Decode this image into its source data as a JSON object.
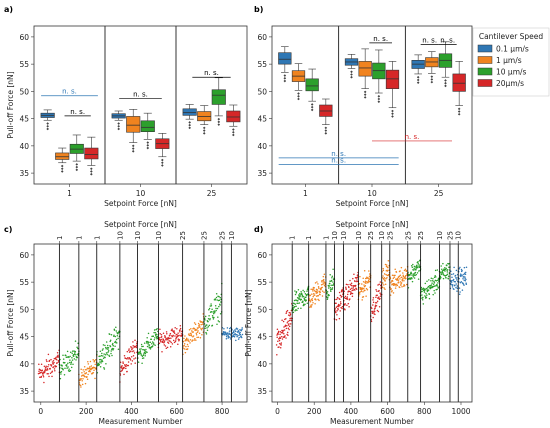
{
  "colors": {
    "s01": "#2f77b4",
    "s1": "#f0831f",
    "s10": "#2ca02c",
    "s20": "#d62728",
    "ns_blue": "#2f77b4",
    "ns_red": "#d62728",
    "divider": "#000000"
  },
  "legend": {
    "title": "Cantilever Speed",
    "items": [
      "0.1 µm/s",
      "1 µm/s",
      "10 µm/s",
      "20µm/s"
    ]
  },
  "chart_data": [
    {
      "panel": "a)",
      "type": "box",
      "xlabel": "Setpoint Force [nN]",
      "ylabel": "Pull-off Force [nN]",
      "ylim": [
        33,
        62
      ],
      "yticks": [
        35,
        40,
        45,
        50,
        55,
        60
      ],
      "categories": [
        "1",
        "10",
        "25"
      ],
      "series": [
        {
          "color": "s01",
          "boxes": [
            [
              44.7,
              45.2,
              45.6,
              46.0,
              46.6
            ],
            [
              44.7,
              45.1,
              45.5,
              45.9,
              46.4
            ],
            [
              44.9,
              45.6,
              46.1,
              46.8,
              47.6
            ]
          ]
        },
        {
          "color": "s1",
          "boxes": [
            [
              36.9,
              37.5,
              38.0,
              38.7,
              39.6
            ],
            [
              40.6,
              42.5,
              43.8,
              45.4,
              46.7
            ],
            [
              43.9,
              44.6,
              45.4,
              46.3,
              47.4
            ]
          ]
        },
        {
          "color": "s10",
          "boxes": [
            [
              37.2,
              38.6,
              39.4,
              40.3,
              42.0
            ],
            [
              41.2,
              42.6,
              43.4,
              44.6,
              46.0
            ],
            [
              45.5,
              47.6,
              49.3,
              50.3,
              52.5
            ]
          ]
        },
        {
          "color": "s20",
          "boxes": [
            [
              36.4,
              37.6,
              38.4,
              39.6,
              41.6
            ],
            [
              38.0,
              39.5,
              40.4,
              41.3,
              42.3
            ],
            [
              43.6,
              44.4,
              45.3,
              46.4,
              47.5
            ]
          ]
        }
      ],
      "annotations": [
        {
          "text": "n. s.",
          "y": 49.2,
          "x0": 0.6,
          "x1": 1.4,
          "color": "ns_blue"
        },
        {
          "text": "n. s.",
          "y": 45.5,
          "x0": 0.93,
          "x1": 1.3,
          "color": "divider"
        },
        {
          "text": "n. s.",
          "y": 48.7,
          "x0": 1.7,
          "x1": 2.3,
          "color": "divider"
        },
        {
          "text": "n. s.",
          "y": 52.6,
          "x0": 2.73,
          "x1": 3.27,
          "color": "divider"
        }
      ]
    },
    {
      "panel": "b)",
      "type": "box",
      "xlabel": "Setpoint Force [nN]",
      "ylabel": "",
      "ylim": [
        33,
        62
      ],
      "yticks": [
        35,
        40,
        45,
        50,
        55,
        60
      ],
      "categories": [
        "1",
        "10",
        "25"
      ],
      "series": [
        {
          "color": "s01",
          "boxes": [
            [
              53.5,
              55.0,
              55.9,
              57.1,
              58.2
            ],
            [
              54.2,
              54.8,
              55.4,
              56.0,
              56.8
            ],
            [
              53.2,
              54.2,
              55.0,
              55.7,
              56.7
            ]
          ]
        },
        {
          "color": "s1",
          "boxes": [
            [
              50.2,
              51.8,
              52.8,
              53.8,
              55.1
            ],
            [
              50.5,
              52.8,
              54.3,
              55.5,
              57.8
            ],
            [
              53.3,
              54.5,
              55.4,
              56.2,
              57.3
            ]
          ]
        },
        {
          "color": "s10",
          "boxes": [
            [
              48.2,
              50.1,
              51.0,
              52.3,
              54.1
            ],
            [
              49.7,
              52.3,
              53.8,
              55.2,
              57.6
            ],
            [
              52.6,
              54.4,
              55.7,
              56.9,
              59.1
            ]
          ]
        },
        {
          "color": "s20",
          "boxes": [
            [
              43.9,
              45.4,
              46.4,
              47.5,
              48.6
            ],
            [
              47.0,
              50.5,
              52.3,
              53.9,
              55.5
            ],
            [
              47.4,
              50.0,
              51.5,
              53.2,
              55.5
            ]
          ]
        }
      ],
      "annotations": [
        {
          "text": "n. s.",
          "y": 37.8,
          "x0": 0.6,
          "x1": 2.4,
          "color": "ns_blue"
        },
        {
          "text": "n. s.",
          "y": 36.6,
          "x0": 0.6,
          "x1": 2.4,
          "color": "ns_blue"
        },
        {
          "text": "n. s.",
          "y": 40.9,
          "x0": 2.0,
          "x1": 3.2,
          "color": "ns_red"
        },
        {
          "text": "n. s.",
          "y": 58.9,
          "x0": 1.96,
          "x1": 2.3,
          "color": "divider"
        },
        {
          "text": "n. s.",
          "y": 58.6,
          "x0": 2.73,
          "x1": 3.0,
          "color": "divider"
        },
        {
          "text": "n. s.",
          "y": 58.6,
          "x0": 3.0,
          "x1": 3.27,
          "color": "divider"
        }
      ]
    },
    {
      "panel": "c)",
      "type": "scatter",
      "xlabel": "Measurement Number",
      "ylabel": "Pull-off Force [nN]",
      "top_xlabel": "Setpoint Force [nN]",
      "xlim": [
        -30,
        910
      ],
      "ylim": [
        33,
        62
      ],
      "xticks": [
        0,
        200,
        400,
        600,
        800
      ],
      "yticks": [
        35,
        40,
        45,
        50,
        55,
        60
      ],
      "segment_bounds": [
        82,
        168,
        247,
        349,
        427,
        519,
        626,
        720,
        799,
        841
      ],
      "top_ticks": [
        "1",
        "1",
        "1",
        "10",
        "10",
        "10",
        "25",
        "25",
        "25",
        "10"
      ],
      "segments": [
        {
          "x": [
            -10,
            82
          ],
          "y": [
            38.0,
            40.6
          ],
          "spread": 1.6,
          "color": "s20"
        },
        {
          "x": [
            82,
            168
          ],
          "y": [
            39.0,
            42.3
          ],
          "spread": 1.3,
          "color": "s10"
        },
        {
          "x": [
            168,
            247
          ],
          "y": [
            37.1,
            39.6
          ],
          "spread": 1.2,
          "color": "s1"
        },
        {
          "x": [
            247,
            349
          ],
          "y": [
            40.4,
            45.4
          ],
          "spread": 1.5,
          "color": "s10"
        },
        {
          "x": [
            349,
            427
          ],
          "y": [
            38.5,
            43.5
          ],
          "spread": 1.5,
          "color": "s20"
        },
        {
          "x": [
            427,
            519
          ],
          "y": [
            41.5,
            45.2
          ],
          "spread": 1.3,
          "color": "s10"
        },
        {
          "x": [
            519,
            626
          ],
          "y": [
            44.2,
            45.6
          ],
          "spread": 1.2,
          "color": "s20"
        },
        {
          "x": [
            626,
            720
          ],
          "y": [
            43.3,
            47.5
          ],
          "spread": 1.2,
          "color": "s1"
        },
        {
          "x": [
            720,
            799
          ],
          "y": [
            47.2,
            51.5
          ],
          "spread": 1.8,
          "color": "s10"
        },
        {
          "x": [
            799,
            890
          ],
          "y": [
            45.6,
            45.4
          ],
          "spread": 0.9,
          "color": "s01"
        }
      ]
    },
    {
      "panel": "d)",
      "type": "scatter",
      "xlabel": "Measurement Number",
      "ylabel": "Pull-off Force [nN]",
      "top_xlabel": "Setpoint Force [nN]",
      "xlim": [
        -30,
        1060
      ],
      "ylim": [
        33,
        62
      ],
      "xticks": [
        0,
        200,
        400,
        600,
        800,
        1000
      ],
      "yticks": [
        35,
        40,
        45,
        50,
        55,
        60
      ],
      "segment_bounds": [
        80,
        170,
        264,
        310,
        360,
        441,
        508,
        568,
        612,
        710,
        780,
        883,
        940,
        985
      ],
      "top_ticks": [
        "1",
        "1",
        "1",
        "10",
        "10",
        "10",
        "25",
        "10",
        "25",
        "25",
        "25",
        "10",
        "25",
        "10"
      ],
      "segments": [
        {
          "x": [
            -5,
            80
          ],
          "y": [
            43.5,
            48.5
          ],
          "spread": 1.8,
          "color": "s20"
        },
        {
          "x": [
            80,
            170
          ],
          "y": [
            50.5,
            53.0
          ],
          "spread": 1.4,
          "color": "s10"
        },
        {
          "x": [
            170,
            264
          ],
          "y": [
            51.5,
            55.0
          ],
          "spread": 1.4,
          "color": "s1"
        },
        {
          "x": [
            264,
            310
          ],
          "y": [
            53.0,
            55.5
          ],
          "spread": 1.5,
          "color": "s10"
        },
        {
          "x": [
            310,
            360
          ],
          "y": [
            49.5,
            52.5
          ],
          "spread": 1.6,
          "color": "s20"
        },
        {
          "x": [
            360,
            441
          ],
          "y": [
            51.5,
            55.5
          ],
          "spread": 1.5,
          "color": "s20"
        },
        {
          "x": [
            441,
            508
          ],
          "y": [
            53.0,
            56.0
          ],
          "spread": 1.5,
          "color": "s1"
        },
        {
          "x": [
            508,
            568
          ],
          "y": [
            49.5,
            53.5
          ],
          "spread": 1.5,
          "color": "s20"
        },
        {
          "x": [
            568,
            612
          ],
          "y": [
            55.0,
            57.5
          ],
          "spread": 1.5,
          "color": "s1"
        },
        {
          "x": [
            612,
            710
          ],
          "y": [
            54.5,
            56.5
          ],
          "spread": 1.3,
          "color": "s1"
        },
        {
          "x": [
            710,
            780
          ],
          "y": [
            56.0,
            58.0
          ],
          "spread": 1.2,
          "color": "s10"
        },
        {
          "x": [
            780,
            883
          ],
          "y": [
            52.5,
            55.5
          ],
          "spread": 1.3,
          "color": "s10"
        },
        {
          "x": [
            883,
            940
          ],
          "y": [
            56.0,
            57.5
          ],
          "spread": 1.3,
          "color": "s10"
        },
        {
          "x": [
            940,
            1030
          ],
          "y": [
            55.0,
            56.0
          ],
          "spread": 1.6,
          "color": "s01"
        }
      ]
    }
  ]
}
